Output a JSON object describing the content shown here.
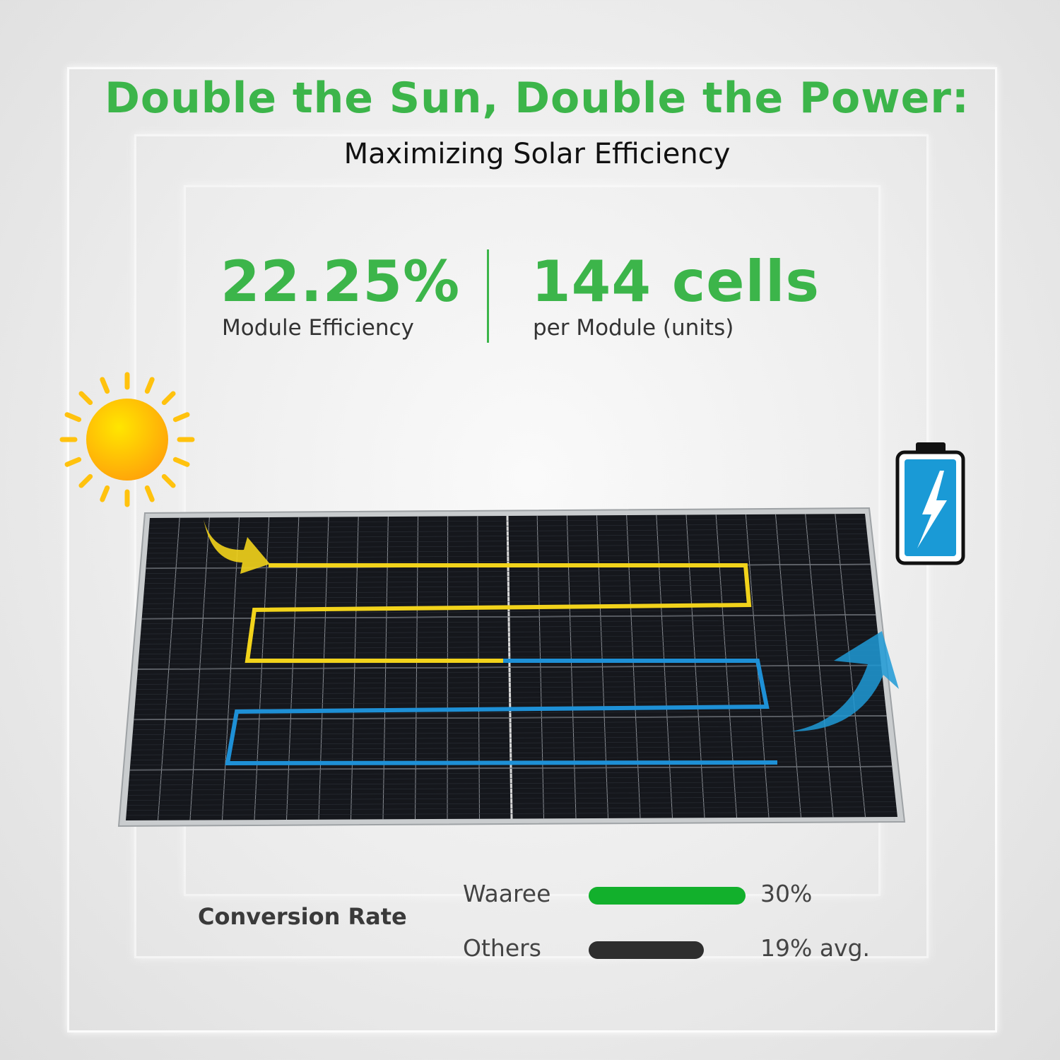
{
  "header": {
    "title": "Double the Sun, Double the Power:",
    "subtitle": "Maximizing Solar Efficiency"
  },
  "stats": [
    {
      "value": "22.25%",
      "label": "Module Efficiency"
    },
    {
      "value": "144 cells",
      "label": "per Module (units)"
    }
  ],
  "illustration": {
    "icons": [
      "sun-icon",
      "solar-panel",
      "battery-charging-icon",
      "flow-arrow-in",
      "flow-arrow-out"
    ],
    "colors": {
      "sun": "#ffc20e",
      "path_in": "#f2d31b",
      "path_out": "#1e90d6",
      "battery": "#1a9ad6"
    }
  },
  "conversion": {
    "title": "Conversion Rate",
    "rows": [
      {
        "label": "Waaree",
        "value": 30,
        "value_text": "30%",
        "color": "#12b02c"
      },
      {
        "label": "Others",
        "value": 19,
        "value_text": "19% avg.",
        "color": "#2e2e2e"
      }
    ]
  },
  "colors": {
    "accent": "#3cb54a",
    "text": "#111111"
  }
}
